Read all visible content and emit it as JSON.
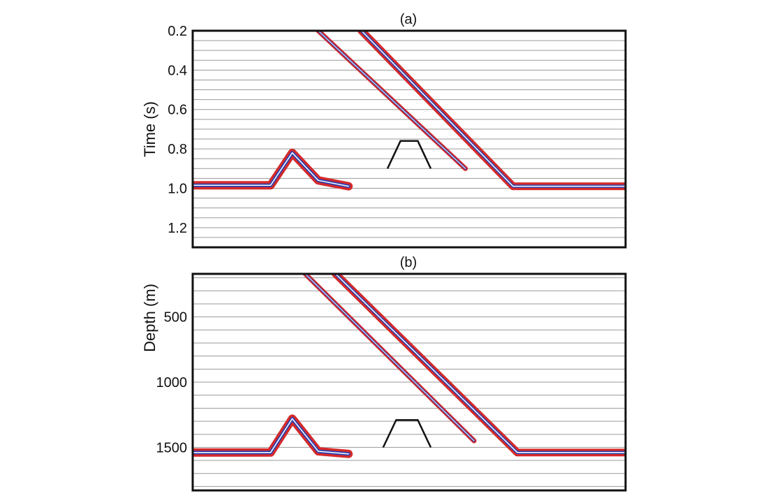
{
  "chart_data": [
    {
      "panel": "(a)",
      "type": "line",
      "ylabel": "Time (s)",
      "yrange": [
        0.2,
        1.3
      ],
      "y_reversed": true,
      "yticks": [
        "0.2",
        "0.4",
        "0.6",
        "0.8",
        "1.0",
        "1.2"
      ],
      "ytick_values": [
        0.2,
        0.4,
        0.6,
        0.8,
        1.0,
        1.2
      ],
      "grid_y": [
        0.25,
        0.3,
        0.35,
        0.4,
        0.45,
        0.5,
        0.55,
        0.6,
        0.65,
        0.7,
        0.75,
        0.8,
        0.85,
        0.9,
        0.95,
        1.0,
        1.05,
        1.1,
        1.15,
        1.2,
        1.25
      ],
      "xrange": [
        0,
        1
      ],
      "series": [
        {
          "values": [
            [
              0.0,
              0.985
            ],
            [
              0.18,
              0.985
            ],
            [
              0.23,
              0.82
            ],
            [
              0.29,
              0.96
            ],
            [
              0.36,
              0.99
            ]
          ]
        },
        {
          "values": [
            [
              0.29,
              0.2
            ],
            [
              0.63,
              0.9
            ]
          ]
        },
        {
          "values": [
            [
              0.39,
              0.2
            ],
            [
              0.74,
              0.99
            ],
            [
              1.0,
              0.99
            ]
          ]
        },
        {
          "values": [
            [
              0.45,
              0.9
            ],
            [
              0.48,
              0.76
            ],
            [
              0.52,
              0.76
            ],
            [
              0.55,
              0.9
            ]
          ]
        }
      ]
    },
    {
      "panel": "(b)",
      "type": "line",
      "ylabel": "Depth (m)",
      "yrange": [
        170,
        1830
      ],
      "y_reversed": true,
      "yticks": [
        "500",
        "1000",
        "1500"
      ],
      "ytick_values": [
        500,
        1000,
        1500
      ],
      "grid_y": [
        200,
        300,
        400,
        500,
        600,
        700,
        800,
        900,
        1000,
        1100,
        1200,
        1300,
        1400,
        1500,
        1600,
        1700,
        1800
      ],
      "xrange": [
        0,
        1
      ],
      "series": [
        {
          "values": [
            [
              0.0,
              1540
            ],
            [
              0.18,
              1540
            ],
            [
              0.23,
              1280
            ],
            [
              0.29,
              1530
            ],
            [
              0.36,
              1550
            ]
          ]
        },
        {
          "values": [
            [
              0.26,
              170
            ],
            [
              0.65,
              1450
            ]
          ]
        },
        {
          "values": [
            [
              0.33,
              170
            ],
            [
              0.75,
              1540
            ],
            [
              1.0,
              1540
            ]
          ]
        },
        {
          "values": [
            [
              0.44,
              1500
            ],
            [
              0.47,
              1290
            ],
            [
              0.52,
              1290
            ],
            [
              0.55,
              1500
            ]
          ]
        }
      ]
    }
  ]
}
